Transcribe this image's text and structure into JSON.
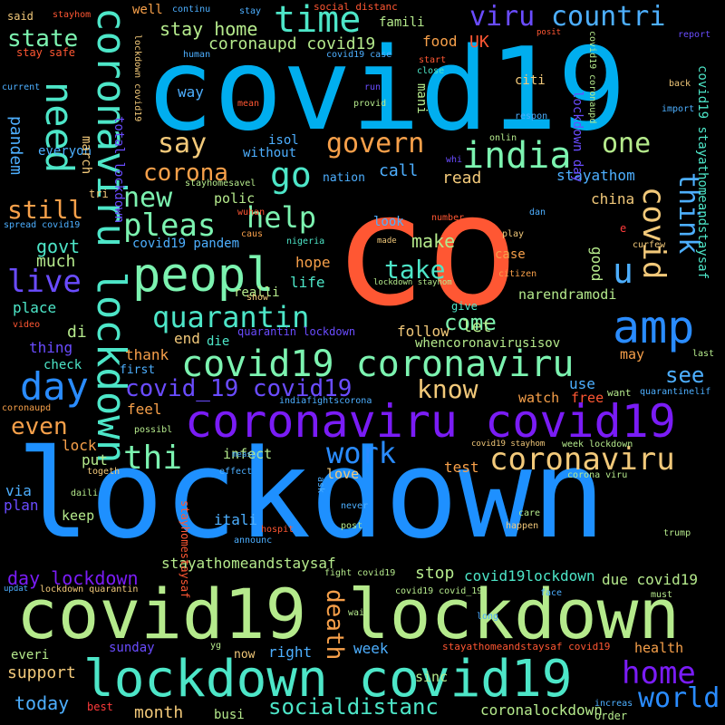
{
  "words": [
    {
      "id": "w-co",
      "text": "co",
      "color": "#ff5733"
    },
    {
      "id": "w-covid19",
      "text": "covid19",
      "color": "#00aeef"
    },
    {
      "id": "w-lockdown",
      "text": "lockdown",
      "color": "#1e90ff"
    },
    {
      "id": "w-covid19-lockdown",
      "text": "covid19 lockdown",
      "color": "#b5ea8c"
    },
    {
      "id": "w-lockdown-covid19",
      "text": "lockdown covid19",
      "color": "#4de6c8"
    },
    {
      "id": "w-coronaviru-covid19",
      "text": "coronaviru covid19",
      "color": "#7a1cf6"
    },
    {
      "id": "w-coronaviru-lockdown",
      "text": "coronaviru lockdown",
      "color": "#4de6c8"
    },
    {
      "id": "w-peopl",
      "text": "peopl",
      "color": "#7cf3b0"
    },
    {
      "id": "w-amp",
      "text": "amp",
      "color": "#2a8cff"
    },
    {
      "id": "w-time",
      "text": "time",
      "color": "#4de6c8"
    },
    {
      "id": "w-india",
      "text": "india",
      "color": "#7cf3b0"
    },
    {
      "id": "w-need",
      "text": "need",
      "color": "#4de6c8"
    },
    {
      "id": "w-covid19-coronaviru",
      "text": "covid19 coronaviru",
      "color": "#7cf3b0"
    },
    {
      "id": "w-day",
      "text": "day",
      "color": "#2a8cff"
    },
    {
      "id": "w-coronaviru",
      "text": "coronaviru",
      "color": "#f2c97a"
    },
    {
      "id": "w-viru",
      "text": "viru",
      "color": "#6a4cff"
    },
    {
      "id": "w-countri",
      "text": "countri",
      "color": "#4dafff"
    },
    {
      "id": "w-go",
      "text": "go",
      "color": "#4de6c8"
    },
    {
      "id": "w-govern",
      "text": "govern",
      "color": "#f7a04a"
    },
    {
      "id": "w-one",
      "text": "one",
      "color": "#b5ea8c"
    },
    {
      "id": "w-pleas",
      "text": "pleas",
      "color": "#7cf3b0"
    },
    {
      "id": "w-help",
      "text": "help",
      "color": "#7cf3b0"
    },
    {
      "id": "w-quarantin",
      "text": "quarantin",
      "color": "#4de6c8"
    },
    {
      "id": "w-u",
      "text": "u",
      "color": "#4dafff"
    },
    {
      "id": "w-covid",
      "text": "covid",
      "color": "#f2c97a"
    },
    {
      "id": "w-think",
      "text": "think",
      "color": "#4dafff"
    },
    {
      "id": "w-home",
      "text": "home",
      "color": "#7a1cf6"
    },
    {
      "id": "w-world",
      "text": "world",
      "color": "#2a8cff"
    },
    {
      "id": "w-thi",
      "text": "thi",
      "color": "#7cf3b0"
    },
    {
      "id": "w-work",
      "text": "work",
      "color": "#2a8cff"
    },
    {
      "id": "w-know",
      "text": "know",
      "color": "#f2c97a"
    },
    {
      "id": "w-say",
      "text": "say",
      "color": "#f2c97a"
    },
    {
      "id": "w-new",
      "text": "new",
      "color": "#7cf3b0"
    },
    {
      "id": "w-take",
      "text": "take",
      "color": "#4de6c8"
    },
    {
      "id": "w-corona",
      "text": "corona",
      "color": "#f7a04a"
    },
    {
      "id": "w-still",
      "text": "still",
      "color": "#f7a04a"
    },
    {
      "id": "w-state",
      "text": "state",
      "color": "#7cf3b0"
    },
    {
      "id": "w-live",
      "text": "live",
      "color": "#6a4cff"
    },
    {
      "id": "w-covid_19-covid19",
      "text": "covid_19 covid19",
      "color": "#6a4cff"
    },
    {
      "id": "w-come",
      "text": "come",
      "color": "#7cf3b0"
    },
    {
      "id": "w-death",
      "text": "death",
      "color": "#f7a04a"
    },
    {
      "id": "w-socialdistanc",
      "text": "socialdistanc",
      "color": "#4de6c8"
    },
    {
      "id": "w-even",
      "text": "even",
      "color": "#f7a04a"
    },
    {
      "id": "w-see",
      "text": "see",
      "color": "#4dafff"
    },
    {
      "id": "w-stay-home",
      "text": "stay home",
      "color": "#b5ea8c"
    },
    {
      "id": "w-coronaupd-covid19",
      "text": "coronaupd covid19",
      "color": "#b5ea8c"
    },
    {
      "id": "w-make",
      "text": "make",
      "color": "#b5ea8c"
    },
    {
      "id": "w-govt",
      "text": "govt",
      "color": "#4de6c8"
    },
    {
      "id": "w-much",
      "text": "much",
      "color": "#b5ea8c"
    },
    {
      "id": "w-day-lockdown",
      "text": "day lockdown",
      "color": "#7a1cf6"
    },
    {
      "id": "w-stayathomeandstaysaf",
      "text": "stayathomeandstaysaf",
      "color": "#b5ea8c"
    },
    {
      "id": "w-stop",
      "text": "stop",
      "color": "#b5ea8c"
    },
    {
      "id": "w-covid19lockdown",
      "text": "covid19lockdown",
      "color": "#4de6c8"
    },
    {
      "id": "w-due-covid19",
      "text": "due covid19",
      "color": "#b5ea8c"
    },
    {
      "id": "w-today",
      "text": "today",
      "color": "#4dafff"
    },
    {
      "id": "w-support",
      "text": "support",
      "color": "#f2c97a"
    },
    {
      "id": "w-month",
      "text": "month",
      "color": "#f2c97a"
    },
    {
      "id": "w-coronalockdown",
      "text": "coronalockdown",
      "color": "#b5ea8c"
    },
    {
      "id": "w-week",
      "text": "week",
      "color": "#4dafff"
    },
    {
      "id": "w-right",
      "text": "right",
      "color": "#4dafff"
    },
    {
      "id": "w-health",
      "text": "health",
      "color": "#f7a04a"
    },
    {
      "id": "w-realli",
      "text": "realli",
      "color": "#b5ea8c"
    },
    {
      "id": "w-life",
      "text": "life",
      "color": "#4de6c8"
    },
    {
      "id": "w-hope",
      "text": "hope",
      "color": "#f7a04a"
    },
    {
      "id": "w-place",
      "text": "place",
      "color": "#4de6c8"
    },
    {
      "id": "w-di",
      "text": "di",
      "color": "#b5ea8c"
    },
    {
      "id": "w-thing",
      "text": "thing",
      "color": "#6a4cff"
    },
    {
      "id": "w-follow",
      "text": "follow",
      "color": "#f2c97a"
    },
    {
      "id": "w-let",
      "text": "let",
      "color": "#b5ea8c"
    },
    {
      "id": "w-end",
      "text": "end",
      "color": "#f2c97a"
    },
    {
      "id": "w-thank",
      "text": "thank",
      "color": "#f7a04a"
    },
    {
      "id": "w-die",
      "text": "die",
      "color": "#4de6c8"
    },
    {
      "id": "w-use",
      "text": "use",
      "color": "#4dafff"
    },
    {
      "id": "w-watch",
      "text": "watch",
      "color": "#f7a04a"
    },
    {
      "id": "w-free",
      "text": "free",
      "color": "#ff5733"
    },
    {
      "id": "w-feel",
      "text": "feel",
      "color": "#f7a04a"
    },
    {
      "id": "w-lock",
      "text": "lock",
      "color": "#f7a04a"
    },
    {
      "id": "w-put",
      "text": "put",
      "color": "#b5ea8c"
    },
    {
      "id": "w-infect",
      "text": "infect",
      "color": "#b5ea8c"
    },
    {
      "id": "w-test",
      "text": "test",
      "color": "#f7a04a"
    },
    {
      "id": "w-love",
      "text": "love",
      "color": "#f2c97a"
    },
    {
      "id": "w-via",
      "text": "via",
      "color": "#4dafff"
    },
    {
      "id": "w-plan",
      "text": "plan",
      "color": "#6a4cff"
    },
    {
      "id": "w-keep",
      "text": "keep",
      "color": "#b5ea8c"
    },
    {
      "id": "w-itali",
      "text": "itali",
      "color": "#4dafff"
    },
    {
      "id": "w-sunday",
      "text": "sunday",
      "color": "#6a4cff"
    },
    {
      "id": "w-everi",
      "text": "everi",
      "color": "#b5ea8c"
    },
    {
      "id": "w-sinc",
      "text": "sinc",
      "color": "#b5ea8c"
    },
    {
      "id": "w-best",
      "text": "best",
      "color": "#ff3b3b"
    },
    {
      "id": "w-busi",
      "text": "busi",
      "color": "#b5ea8c"
    },
    {
      "id": "w-now",
      "text": "now",
      "color": "#f2c97a"
    },
    {
      "id": "w-read",
      "text": "read",
      "color": "#f2c97a"
    },
    {
      "id": "w-call",
      "text": "call",
      "color": "#4dafff"
    },
    {
      "id": "w-stayathom",
      "text": "stayathom",
      "color": "#4dafff"
    },
    {
      "id": "w-china",
      "text": "china",
      "color": "#f2c97a"
    },
    {
      "id": "w-case",
      "text": "case",
      "color": "#f7a04a"
    },
    {
      "id": "w-good",
      "text": "good",
      "color": "#b5ea8c"
    },
    {
      "id": "w-may",
      "text": "may",
      "color": "#f7a04a"
    },
    {
      "id": "w-narendramodi",
      "text": "narendramodi",
      "color": "#b5ea8c"
    },
    {
      "id": "w-whencoronavirusisov",
      "text": "whencoronavirusisov",
      "color": "#b5ea8c"
    },
    {
      "id": "w-first",
      "text": "first",
      "color": "#4dafff"
    },
    {
      "id": "w-check",
      "text": "check",
      "color": "#4de6c8"
    },
    {
      "id": "w-everyon",
      "text": "everyon",
      "color": "#4dafff"
    },
    {
      "id": "w-pandem",
      "text": "pandem",
      "color": "#4dafff"
    },
    {
      "id": "w-march",
      "text": "march",
      "color": "#f2c97a"
    },
    {
      "id": "w-way",
      "text": "way",
      "color": "#4dafff"
    },
    {
      "id": "w-isol",
      "text": "isol",
      "color": "#4dafff"
    },
    {
      "id": "w-without",
      "text": "without",
      "color": "#4dafff"
    },
    {
      "id": "w-total-lockdown",
      "text": "total lockdown",
      "color": "#6a4cff"
    },
    {
      "id": "w-polic",
      "text": "polic",
      "color": "#b5ea8c"
    },
    {
      "id": "w-nation",
      "text": "nation",
      "color": "#4dafff"
    },
    {
      "id": "w-look",
      "text": "look",
      "color": "#4dafff"
    },
    {
      "id": "w-covid19-pandem",
      "text": "covid19 pandem",
      "color": "#4dafff"
    },
    {
      "id": "w-quarantin-lockdown",
      "text": "quarantin lockdown",
      "color": "#6a4cff"
    },
    {
      "id": "w-food",
      "text": "food",
      "color": "#f7a04a"
    },
    {
      "id": "w-uk",
      "text": "UK",
      "color": "#ff5733"
    },
    {
      "id": "w-famili",
      "text": "famili",
      "color": "#b5ea8c"
    },
    {
      "id": "w-well",
      "text": "well",
      "color": "#f7a04a"
    },
    {
      "id": "w-citi",
      "text": "citi",
      "color": "#f2c97a"
    },
    {
      "id": "w-mani",
      "text": "mani",
      "color": "#b5ea8c"
    },
    {
      "id": "w-lockdown-day",
      "text": "lockdown day",
      "color": "#6a4cff"
    },
    {
      "id": "w-stayathomeandstaysaf-v",
      "text": "covid19 stayathomeandstaysaf",
      "color": "#4de6c8"
    },
    {
      "id": "w-give",
      "text": "give",
      "color": "#4de6c8"
    },
    {
      "id": "w-said",
      "text": "said",
      "color": "#f2c97a"
    },
    {
      "id": "w-stay-safe",
      "text": "stay safe",
      "color": "#ff5733"
    },
    {
      "id": "w-human",
      "text": "human",
      "color": "#4dafff"
    },
    {
      "id": "w-stayhom",
      "text": "stayhom",
      "color": "#ff5733"
    },
    {
      "id": "w-continu",
      "text": "continu",
      "color": "#4dafff"
    },
    {
      "id": "w-stay",
      "text": "stay",
      "color": "#4dafff"
    },
    {
      "id": "w-social-distanc",
      "text": "social distanc",
      "color": "#ff5733"
    },
    {
      "id": "w-posit",
      "text": "posit",
      "color": "#ff5733"
    },
    {
      "id": "w-report",
      "text": "report",
      "color": "#6a4cff"
    },
    {
      "id": "w-current",
      "text": "current",
      "color": "#4dafff"
    },
    {
      "id": "w-mean",
      "text": "mean",
      "color": "#ff5733"
    },
    {
      "id": "w-run",
      "text": "run",
      "color": "#6a4cff"
    },
    {
      "id": "w-provid",
      "text": "provid",
      "color": "#b5ea8c"
    },
    {
      "id": "w-close",
      "text": "close",
      "color": "#4de6c8"
    },
    {
      "id": "w-start",
      "text": "start",
      "color": "#ff5733"
    },
    {
      "id": "w-covid19-case",
      "text": "covid19 case",
      "color": "#4dafff"
    },
    {
      "id": "w-back",
      "text": "back",
      "color": "#f2c97a"
    },
    {
      "id": "w-import",
      "text": "import",
      "color": "#4dafff"
    },
    {
      "id": "w-respon",
      "text": "respon",
      "color": "#4dafff"
    },
    {
      "id": "w-onlin",
      "text": "onlin",
      "color": "#b5ea8c"
    },
    {
      "id": "w-whi",
      "text": "whi",
      "color": "#6a4cff"
    },
    {
      "id": "w-tri",
      "text": "tri",
      "color": "#f2c97a"
    },
    {
      "id": "w-spread-covid19",
      "text": "spread covid19",
      "color": "#4dafff"
    },
    {
      "id": "w-stayhomesavel",
      "text": "stayhomesavel",
      "color": "#b5ea8c"
    },
    {
      "id": "w-wuhan",
      "text": "wuhan",
      "color": "#ff5733"
    },
    {
      "id": "w-caus",
      "text": "caus",
      "color": "#f7a04a"
    },
    {
      "id": "w-nigeria",
      "text": "nigeria",
      "color": "#4de6c8"
    },
    {
      "id": "w-made",
      "text": "made",
      "color": "#f2c97a"
    },
    {
      "id": "w-number",
      "text": "number",
      "color": "#ff5733"
    },
    {
      "id": "w-play",
      "text": "play",
      "color": "#f2c97a"
    },
    {
      "id": "w-dan",
      "text": "dan",
      "color": "#4dafff"
    },
    {
      "id": "w-citizen",
      "text": "citizen",
      "color": "#f7a04a"
    },
    {
      "id": "w-curfew",
      "text": "curfew",
      "color": "#f2c97a"
    },
    {
      "id": "w-lockdown-stayhom",
      "text": "lockdown stayhom",
      "color": "#b5ea8c"
    },
    {
      "id": "w-show",
      "text": "show",
      "color": "#f2c97a"
    },
    {
      "id": "w-video",
      "text": "video",
      "color": "#ff5733"
    },
    {
      "id": "w-last",
      "text": "last",
      "color": "#b5ea8c"
    },
    {
      "id": "w-indiafightscorona",
      "text": "indiafightscorona",
      "color": "#4dafff"
    },
    {
      "id": "w-want",
      "text": "want",
      "color": "#b5ea8c"
    },
    {
      "id": "w-quarantinelif",
      "text": "quarantinelif",
      "color": "#4dafff"
    },
    {
      "id": "w-coronaupd",
      "text": "coronaupd",
      "color": "#f7a04a"
    },
    {
      "id": "w-possibl",
      "text": "possibl",
      "color": "#b5ea8c"
    },
    {
      "id": "w-measur",
      "text": "measur",
      "color": "#4dafff"
    },
    {
      "id": "w-covid19-stayhom",
      "text": "covid19 stayhom",
      "color": "#f2c97a"
    },
    {
      "id": "w-week-lockdown",
      "text": "week lockdown",
      "color": "#b5ea8c"
    },
    {
      "id": "w-togeth",
      "text": "togeth",
      "color": "#f2c97a"
    },
    {
      "id": "w-effect",
      "text": "effect",
      "color": "#4dafff"
    },
    {
      "id": "w-ask",
      "text": "ask",
      "color": "#4dafff"
    },
    {
      "id": "w-corona-viru",
      "text": "corona viru",
      "color": "#b5ea8c"
    },
    {
      "id": "w-daili",
      "text": "daili",
      "color": "#b5ea8c"
    },
    {
      "id": "w-stayhomestaysaf",
      "text": "stayhomestaysaf",
      "color": "#ff5733"
    },
    {
      "id": "w-never",
      "text": "never",
      "color": "#4dafff"
    },
    {
      "id": "w-care",
      "text": "care",
      "color": "#b5ea8c"
    },
    {
      "id": "w-happen",
      "text": "happen",
      "color": "#f2c97a"
    },
    {
      "id": "w-hospit",
      "text": "hospit",
      "color": "#ff5733"
    },
    {
      "id": "w-announc",
      "text": "announc",
      "color": "#4dafff"
    },
    {
      "id": "w-post",
      "text": "post",
      "color": "#b5ea8c"
    },
    {
      "id": "w-trump",
      "text": "trump",
      "color": "#b5ea8c"
    },
    {
      "id": "w-updat",
      "text": "updat",
      "color": "#4dafff"
    },
    {
      "id": "w-lockdown-quarantin",
      "text": "lockdown quarantin",
      "color": "#f2c97a"
    },
    {
      "id": "w-fight-covid19",
      "text": "fight covid19",
      "color": "#b5ea8c"
    },
    {
      "id": "w-covid19-covid_19",
      "text": "covid19 covid_19",
      "color": "#b5ea8c"
    },
    {
      "id": "w-face",
      "text": "face",
      "color": "#4dafff"
    },
    {
      "id": "w-must",
      "text": "must",
      "color": "#b5ea8c"
    },
    {
      "id": "w-wait",
      "text": "wait",
      "color": "#b5ea8c"
    },
    {
      "id": "w-long",
      "text": "long",
      "color": "#4dafff"
    },
    {
      "id": "w-stayathomeandstaysaf-covid19",
      "text": "stayathomeandstaysaf covid19",
      "color": "#ff5733"
    },
    {
      "id": "w-yg",
      "text": "yg",
      "color": "#b5ea8c"
    },
    {
      "id": "w-increas",
      "text": "increas",
      "color": "#4dafff"
    },
    {
      "id": "w-order",
      "text": "order",
      "color": "#b5ea8c"
    },
    {
      "id": "w-lockdown-covid19-v",
      "text": "lockdown covid19",
      "color": "#f2c97a"
    },
    {
      "id": "w-covid19-coronaupd",
      "text": "covid19 coronaupd",
      "color": "#b5ea8c"
    },
    {
      "id": "w-e",
      "text": "e",
      "color": "#ff3b3b"
    }
  ]
}
